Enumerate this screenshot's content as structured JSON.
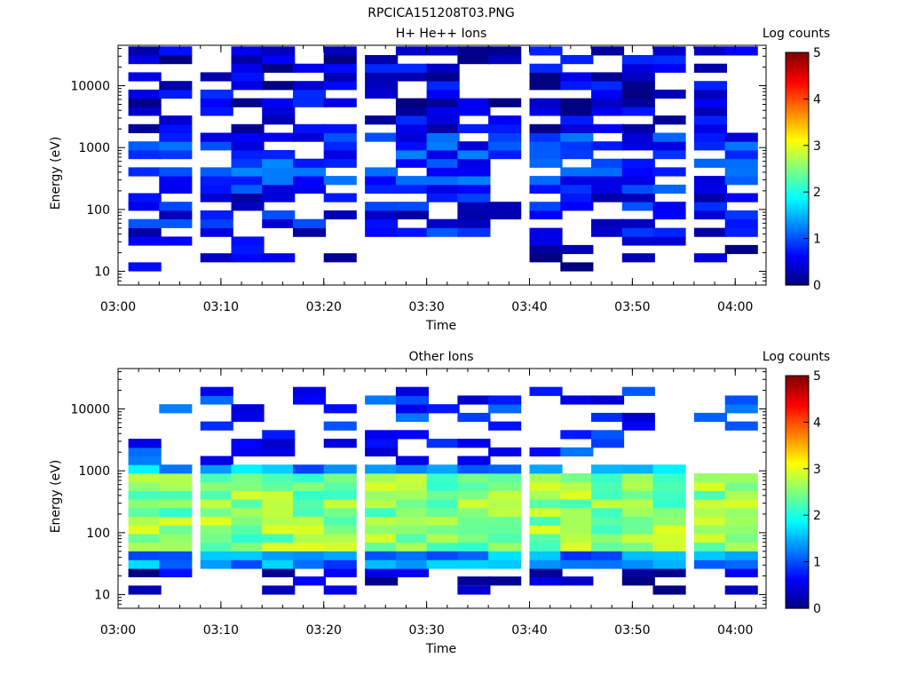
{
  "figure_title": "RPCICA151208T03.PNG",
  "chart_data": [
    {
      "type": "heatmap",
      "title": "H+ He++ Ions",
      "xlabel": "Time",
      "ylabel": "Energy (eV)",
      "yscale": "log",
      "ylim": [
        6,
        45000
      ],
      "xlim": [
        "03:00",
        "04:03"
      ],
      "x_ticks": [
        "03:00",
        "03:10",
        "03:20",
        "03:30",
        "03:40",
        "03:50",
        "04:00"
      ],
      "y_ticks": [
        "10",
        "100",
        "1000",
        "10000"
      ],
      "colorbar": {
        "label": "Log counts",
        "min": 0,
        "max": 5,
        "ticks": [
          "0",
          "1",
          "2",
          "3",
          "4",
          "5"
        ]
      },
      "time_bins_start": [
        "03:01",
        "03:04",
        "03:08",
        "03:11",
        "03:14",
        "03:17",
        "03:20",
        "03:24",
        "03:27",
        "03:30",
        "03:33",
        "03:36",
        "03:40",
        "03:43",
        "03:46",
        "03:49",
        "03:52",
        "03:56",
        "03:59"
      ],
      "bin_minutes": 3.2,
      "energy_bins_eV": [
        10,
        14,
        19,
        26,
        36,
        50,
        69,
        95,
        131,
        180,
        249,
        343,
        473,
        652,
        899,
        1240,
        1710,
        2358,
        3252,
        4484,
        6184,
        8527,
        11760,
        16215,
        22360,
        30835
      ],
      "seed": 7,
      "profile": [
        {
          "emin": 8,
          "emax": 30,
          "level": 0.3,
          "fill": 0.3
        },
        {
          "emin": 30,
          "emax": 150,
          "level": 0.6,
          "fill": 0.55
        },
        {
          "emin": 150,
          "emax": 1500,
          "level": 0.85,
          "fill": 0.75
        },
        {
          "emin": 1500,
          "emax": 40000,
          "level": 0.4,
          "fill": 0.65
        }
      ]
    },
    {
      "type": "heatmap",
      "title": "Other Ions",
      "xlabel": "Time",
      "ylabel": "Energy (eV)",
      "yscale": "log",
      "ylim": [
        6,
        45000
      ],
      "xlim": [
        "03:00",
        "04:03"
      ],
      "x_ticks": [
        "03:00",
        "03:10",
        "03:20",
        "03:30",
        "03:40",
        "03:50",
        "04:00"
      ],
      "y_ticks": [
        "10",
        "100",
        "1000",
        "10000"
      ],
      "colorbar": {
        "label": "Log counts",
        "min": 0,
        "max": 5,
        "ticks": [
          "0",
          "1",
          "2",
          "3",
          "4",
          "5"
        ]
      },
      "time_bins_start": [
        "03:01",
        "03:04",
        "03:08",
        "03:11",
        "03:14",
        "03:17",
        "03:20",
        "03:24",
        "03:27",
        "03:30",
        "03:33",
        "03:36",
        "03:40",
        "03:43",
        "03:46",
        "03:49",
        "03:52",
        "03:56",
        "03:59"
      ],
      "bin_minutes": 3.2,
      "energy_bins_eV": [
        10,
        14,
        19,
        26,
        36,
        50,
        69,
        95,
        131,
        180,
        249,
        343,
        473,
        652,
        899,
        1240,
        1710,
        2358,
        3252,
        4484,
        6184,
        8527,
        11760,
        16215,
        22360,
        30835
      ],
      "seed": 13,
      "profile": [
        {
          "emin": 8,
          "emax": 26,
          "level": 0.3,
          "fill": 0.45
        },
        {
          "emin": 26,
          "emax": 45,
          "level": 1.3,
          "fill": 1.0
        },
        {
          "emin": 45,
          "emax": 700,
          "level": 2.55,
          "fill": 1.0
        },
        {
          "emin": 700,
          "emax": 1150,
          "level": 1.4,
          "fill": 0.9
        },
        {
          "emin": 1150,
          "emax": 20000,
          "level": 0.8,
          "fill": 0.35
        }
      ]
    }
  ]
}
